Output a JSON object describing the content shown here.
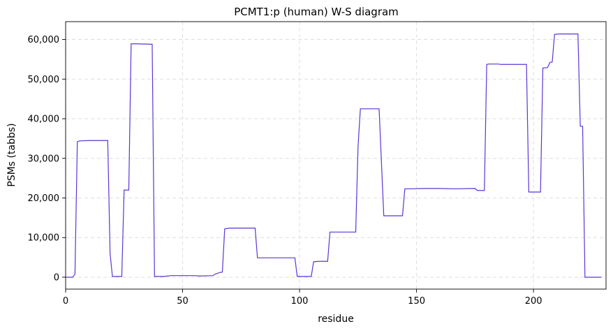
{
  "chart_data": {
    "type": "line",
    "title": "PCMT1:p (human) W-S diagram",
    "xlabel": "residue",
    "ylabel": "PSMs (tabbs)",
    "xlim": [
      0,
      231
    ],
    "ylim": [
      -3000,
      64500
    ],
    "x_ticks": [
      0,
      50,
      100,
      150,
      200
    ],
    "y_ticks": [
      0,
      10000,
      20000,
      30000,
      40000,
      50000,
      60000
    ],
    "x_tick_labels": [
      "0",
      "50",
      "100",
      "150",
      "200"
    ],
    "y_tick_labels": [
      "0",
      "10,000",
      "20,000",
      "30,000",
      "40,000",
      "50,000",
      "60,000"
    ],
    "grid": true,
    "grid_style": "dashed",
    "line_color": "#5b35d5",
    "series": [
      {
        "name": "",
        "points": [
          [
            0,
            0
          ],
          [
            3,
            0
          ],
          [
            4,
            800
          ],
          [
            5,
            34200
          ],
          [
            6,
            34400
          ],
          [
            10,
            34500
          ],
          [
            17,
            34500
          ],
          [
            18,
            34500
          ],
          [
            19,
            6000
          ],
          [
            20,
            200
          ],
          [
            24,
            200
          ],
          [
            25,
            22000
          ],
          [
            27,
            22000
          ],
          [
            28,
            58900
          ],
          [
            30,
            58900
          ],
          [
            37,
            58800
          ],
          [
            38,
            200
          ],
          [
            42,
            200
          ],
          [
            45,
            400
          ],
          [
            55,
            400
          ],
          [
            57,
            300
          ],
          [
            63,
            400
          ],
          [
            64,
            800
          ],
          [
            65,
            1000
          ],
          [
            66,
            1200
          ],
          [
            67,
            1300
          ],
          [
            68,
            12200
          ],
          [
            70,
            12400
          ],
          [
            81,
            12400
          ],
          [
            82,
            4900
          ],
          [
            98,
            4900
          ],
          [
            99,
            200
          ],
          [
            105,
            200
          ],
          [
            106,
            3900
          ],
          [
            108,
            4000
          ],
          [
            112,
            4000
          ],
          [
            113,
            11400
          ],
          [
            115,
            11400
          ],
          [
            124,
            11400
          ],
          [
            125,
            33000
          ],
          [
            126,
            42500
          ],
          [
            134,
            42500
          ],
          [
            136,
            15500
          ],
          [
            144,
            15500
          ],
          [
            145,
            22300
          ],
          [
            147,
            22300
          ],
          [
            153,
            22400
          ],
          [
            160,
            22400
          ],
          [
            166,
            22300
          ],
          [
            175,
            22400
          ],
          [
            176,
            21900
          ],
          [
            179,
            21900
          ],
          [
            180,
            53700
          ],
          [
            181,
            53800
          ],
          [
            185,
            53800
          ],
          [
            186,
            53700
          ],
          [
            197,
            53700
          ],
          [
            198,
            21500
          ],
          [
            203,
            21500
          ],
          [
            204,
            52800
          ],
          [
            206,
            52900
          ],
          [
            207,
            54200
          ],
          [
            208,
            54300
          ],
          [
            209,
            61300
          ],
          [
            211,
            61400
          ],
          [
            219,
            61400
          ],
          [
            220,
            38100
          ],
          [
            221,
            38100
          ],
          [
            222,
            0
          ],
          [
            229,
            0
          ]
        ]
      }
    ]
  }
}
